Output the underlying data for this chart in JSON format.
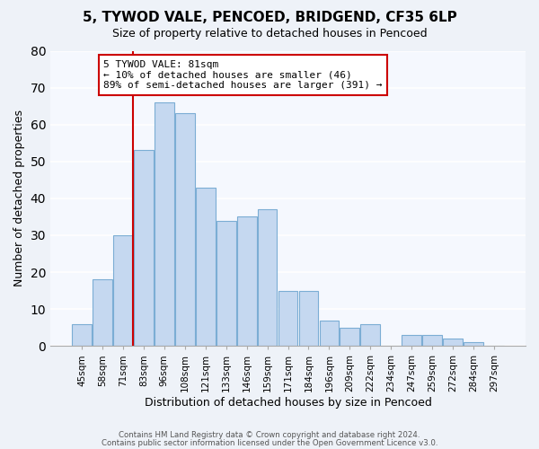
{
  "title": "5, TYWOD VALE, PENCOED, BRIDGEND, CF35 6LP",
  "subtitle": "Size of property relative to detached houses in Pencoed",
  "xlabel": "Distribution of detached houses by size in Pencoed",
  "ylabel": "Number of detached properties",
  "categories": [
    "45sqm",
    "58sqm",
    "71sqm",
    "83sqm",
    "96sqm",
    "108sqm",
    "121sqm",
    "133sqm",
    "146sqm",
    "159sqm",
    "171sqm",
    "184sqm",
    "196sqm",
    "209sqm",
    "222sqm",
    "234sqm",
    "247sqm",
    "259sqm",
    "272sqm",
    "284sqm",
    "297sqm"
  ],
  "values": [
    6,
    18,
    30,
    53,
    66,
    63,
    43,
    34,
    35,
    37,
    15,
    15,
    7,
    5,
    6,
    0,
    3,
    3,
    2,
    1,
    0
  ],
  "bar_color": "#c5d8f0",
  "bar_edge_color": "#7badd4",
  "vline_color": "#cc0000",
  "vline_index": 3,
  "annotation_line1": "5 TYWOD VALE: 81sqm",
  "annotation_line2": "← 10% of detached houses are smaller (46)",
  "annotation_line3": "89% of semi-detached houses are larger (391) →",
  "annotation_box_color": "#ffffff",
  "annotation_box_edge": "#cc0000",
  "ylim": [
    0,
    80
  ],
  "yticks": [
    0,
    10,
    20,
    30,
    40,
    50,
    60,
    70,
    80
  ],
  "footer1": "Contains HM Land Registry data © Crown copyright and database right 2024.",
  "footer2": "Contains public sector information licensed under the Open Government Licence v3.0.",
  "bg_color": "#eef2f8",
  "plot_bg_color": "#f5f8fe"
}
